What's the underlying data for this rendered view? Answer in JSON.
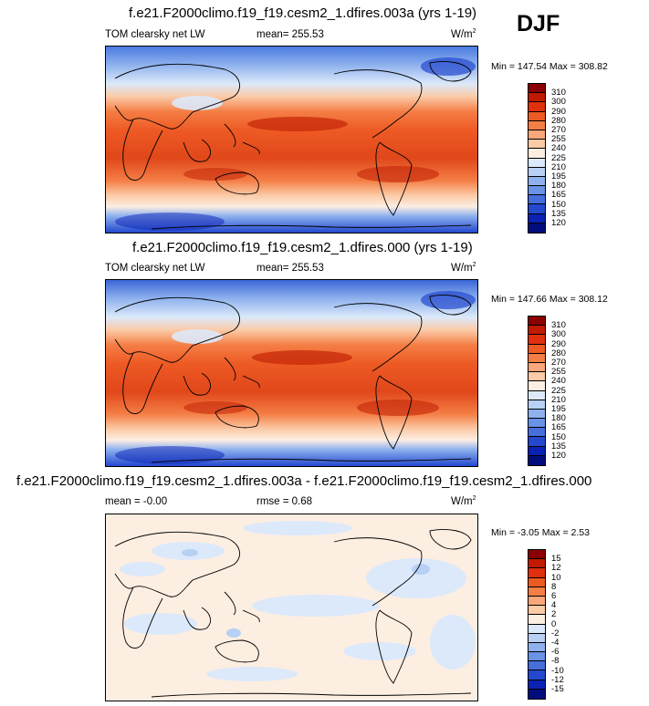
{
  "season": "DJF",
  "panels": [
    {
      "title": "f.e21.F2000climo.f19_f19.cesm2_1.dfires.003a (yrs 1-19)",
      "left_label": "TOM clearsky net LW",
      "center_label": "mean= 255.53",
      "units_base": "W/m",
      "units_exp": "2",
      "stats": "Min = 147.54 Max = 308.82",
      "colorbar_labels": [
        "310",
        "300",
        "290",
        "280",
        "270",
        "255",
        "240",
        "225",
        "210",
        "195",
        "180",
        "165",
        "150",
        "135",
        "120"
      ],
      "colorbar_colors": [
        "#8b0000",
        "#c11a00",
        "#e0300e",
        "#ee5a24",
        "#f47e45",
        "#f9a67a",
        "#fbcaa6",
        "#fdeee2",
        "#dce9fa",
        "#b7d0f4",
        "#8fb2ee",
        "#6a92e6",
        "#466fdc",
        "#2449cf",
        "#0a22b4",
        "#000d7a"
      ]
    },
    {
      "title": "f.e21.F2000climo.f19_f19.cesm2_1.dfires.000 (yrs 1-19)",
      "left_label": "TOM clearsky net LW",
      "center_label": "mean= 255.53",
      "units_base": "W/m",
      "units_exp": "2",
      "stats": "Min = 147.66 Max = 308.12",
      "colorbar_labels": [
        "310",
        "300",
        "290",
        "280",
        "270",
        "255",
        "240",
        "225",
        "210",
        "195",
        "180",
        "165",
        "150",
        "135",
        "120"
      ],
      "colorbar_colors": [
        "#8b0000",
        "#c11a00",
        "#e0300e",
        "#ee5a24",
        "#f47e45",
        "#f9a67a",
        "#fbcaa6",
        "#fdeee2",
        "#dce9fa",
        "#b7d0f4",
        "#8fb2ee",
        "#6a92e6",
        "#466fdc",
        "#2449cf",
        "#0a22b4",
        "#000d7a"
      ]
    },
    {
      "title": "f.e21.F2000climo.f19_f19.cesm2_1.dfires.003a - f.e21.F2000climo.f19_f19.cesm2_1.dfires.000",
      "left_label": "mean =  -0.00",
      "center_label": "rmse =   0.68",
      "units_base": "W/m",
      "units_exp": "2",
      "stats": "Min =  -3.05 Max =   2.53",
      "colorbar_labels": [
        "15",
        "12",
        "10",
        "8",
        "6",
        "4",
        "2",
        "0",
        "-2",
        "-4",
        "-6",
        "-8",
        "-10",
        "-12",
        "-15"
      ],
      "colorbar_colors": [
        "#8b0000",
        "#c11a00",
        "#e0300e",
        "#ee5a24",
        "#f47e45",
        "#f9a67a",
        "#fbcaa6",
        "#fdeee2",
        "#dce9fa",
        "#b7d0f4",
        "#8fb2ee",
        "#6a92e6",
        "#466fdc",
        "#2449cf",
        "#0a22b4",
        "#000d7a"
      ]
    }
  ]
}
